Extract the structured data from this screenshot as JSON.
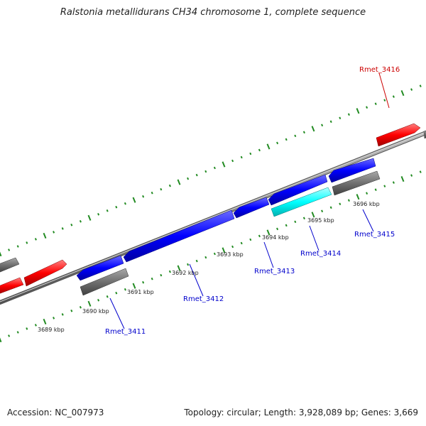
{
  "title": "Ralstonia metallidurans CH34 chromosome 1, complete sequence",
  "footer": {
    "accession": "Accession: NC_007973",
    "topology": "Topology: circular; Length: 3,928,089 bp; Genes: 3,669"
  },
  "map": {
    "kbp_labels": [
      "3689 kbp",
      "3690 kbp",
      "3691 kbp",
      "3692 kbp",
      "3693 kbp",
      "3694 kbp",
      "3695 kbp",
      "3696 kbp"
    ],
    "gene_labels": [
      "Rmet_3411",
      "Rmet_3412",
      "Rmet_3413",
      "Rmet_3414",
      "Rmet_3415",
      "Rmet_3416"
    ]
  },
  "colors": {
    "forward_cds": "#ff0000",
    "reverse_cds": "#0000ff",
    "rna": "#00ffff",
    "pseudo": "#707070",
    "backbone": "#808080",
    "tick": "#228b22",
    "callout_blue": "#0000cc",
    "callout_red": "#cc0000"
  }
}
